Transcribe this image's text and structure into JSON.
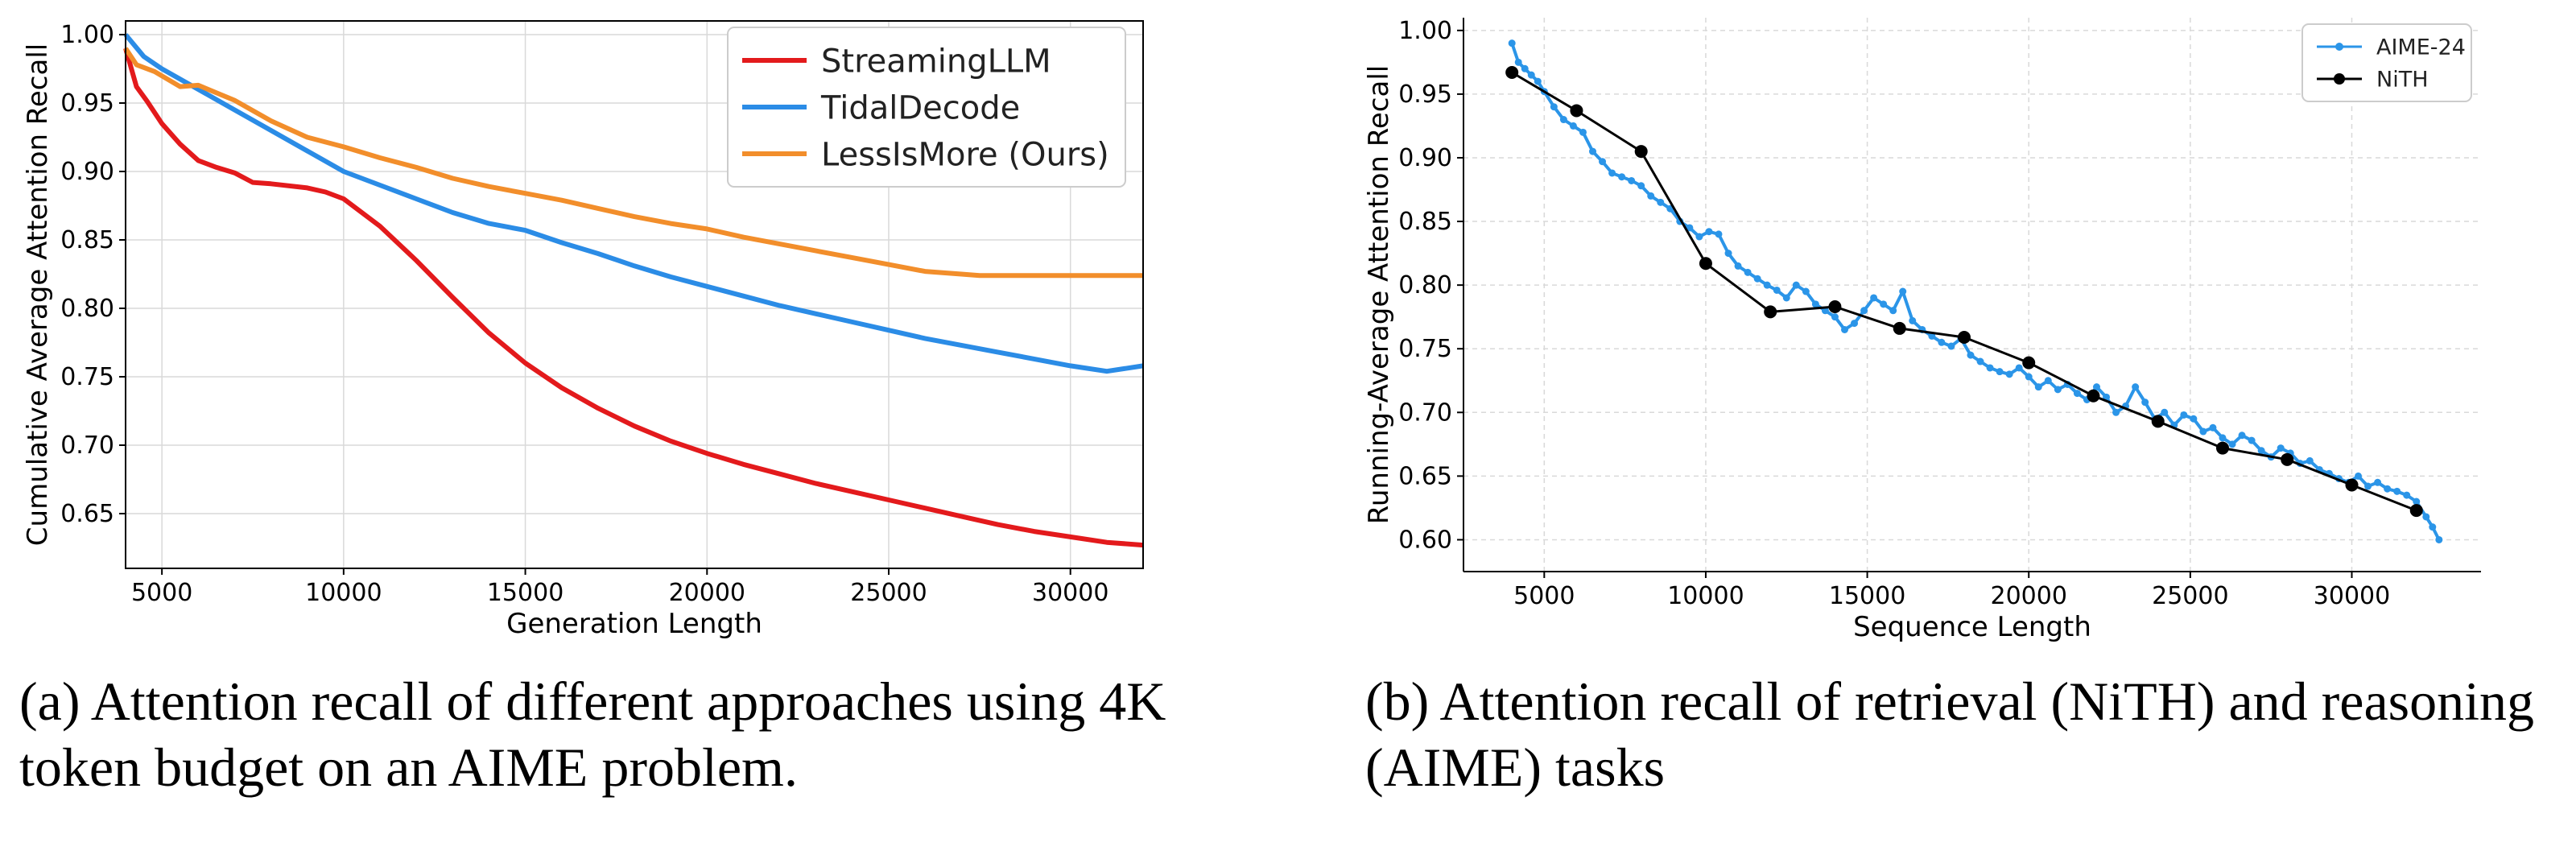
{
  "chart_data": [
    {
      "type": "line",
      "xlabel": "Generation Length",
      "ylabel": "Cumulative Average Attention Recall",
      "xlim": [
        4000,
        32000
      ],
      "ylim": [
        0.61,
        1.01
      ],
      "xticks": [
        5000,
        10000,
        15000,
        20000,
        25000,
        30000
      ],
      "xtick_labels": [
        "5000",
        "10000",
        "15000",
        "20000",
        "25000",
        "30000"
      ],
      "yticks": [
        0.65,
        0.7,
        0.75,
        0.8,
        0.85,
        0.9,
        0.95,
        1.0
      ],
      "ytick_labels": [
        "0.65",
        "0.70",
        "0.75",
        "0.80",
        "0.85",
        "0.90",
        "0.95",
        "1.00"
      ],
      "grid": true,
      "legend_position": "top-right",
      "series": [
        {
          "name": "StreamingLLM",
          "color": "#e31a1c",
          "x": [
            4000,
            4300,
            4600,
            5000,
            5500,
            6000,
            6500,
            7000,
            7500,
            8000,
            9000,
            9500,
            10000,
            11000,
            12000,
            13000,
            14000,
            15000,
            16000,
            17000,
            18000,
            19000,
            20000,
            21000,
            22000,
            23000,
            24000,
            25000,
            26000,
            27000,
            28000,
            29000,
            30000,
            31000,
            32000
          ],
          "y": [
            0.99,
            0.962,
            0.951,
            0.935,
            0.92,
            0.908,
            0.903,
            0.899,
            0.892,
            0.891,
            0.888,
            0.885,
            0.88,
            0.86,
            0.835,
            0.808,
            0.782,
            0.76,
            0.742,
            0.727,
            0.714,
            0.703,
            0.694,
            0.686,
            0.679,
            0.672,
            0.666,
            0.66,
            0.654,
            0.648,
            0.642,
            0.637,
            0.633,
            0.629,
            0.627
          ]
        },
        {
          "name": "TidalDecode",
          "color": "#2b8ce6",
          "x": [
            4000,
            4500,
            5000,
            6000,
            7000,
            8000,
            9000,
            10000,
            11000,
            12000,
            13000,
            14000,
            15000,
            16000,
            17000,
            18000,
            19000,
            20000,
            21000,
            22000,
            23000,
            24000,
            25000,
            26000,
            27000,
            28000,
            29000,
            30000,
            31000,
            32000
          ],
          "y": [
            1.0,
            0.984,
            0.975,
            0.96,
            0.945,
            0.93,
            0.915,
            0.9,
            0.89,
            0.88,
            0.87,
            0.862,
            0.857,
            0.848,
            0.84,
            0.831,
            0.823,
            0.816,
            0.809,
            0.802,
            0.796,
            0.79,
            0.784,
            0.778,
            0.773,
            0.768,
            0.763,
            0.758,
            0.754,
            0.758
          ]
        },
        {
          "name": "LessIsMore (Ours)",
          "color": "#f28e2b",
          "x": [
            4000,
            4300,
            4800,
            5500,
            6000,
            7000,
            8000,
            9000,
            10000,
            11000,
            12000,
            13000,
            14000,
            15000,
            16000,
            17000,
            18000,
            19000,
            20000,
            21000,
            22000,
            23000,
            24000,
            25000,
            26000,
            27000,
            27500,
            28000,
            29000,
            30000,
            31000,
            32000
          ],
          "y": [
            0.99,
            0.978,
            0.973,
            0.962,
            0.963,
            0.952,
            0.937,
            0.925,
            0.918,
            0.91,
            0.903,
            0.895,
            0.889,
            0.884,
            0.879,
            0.873,
            0.867,
            0.862,
            0.858,
            0.852,
            0.847,
            0.842,
            0.837,
            0.832,
            0.827,
            0.825,
            0.824,
            0.824,
            0.824,
            0.824,
            0.824,
            0.824
          ]
        }
      ]
    },
    {
      "type": "line",
      "xlabel": "Sequence Length",
      "ylabel": "Running-Average Attention Recall",
      "xlim": [
        2500,
        34000
      ],
      "ylim": [
        0.575,
        1.01
      ],
      "xticks": [
        5000,
        10000,
        15000,
        20000,
        25000,
        30000
      ],
      "xtick_labels": [
        "5000",
        "10000",
        "15000",
        "20000",
        "25000",
        "30000"
      ],
      "yticks": [
        0.6,
        0.65,
        0.7,
        0.75,
        0.8,
        0.85,
        0.9,
        0.95,
        1.0
      ],
      "ytick_labels": [
        "0.60",
        "0.65",
        "0.70",
        "0.75",
        "0.80",
        "0.85",
        "0.90",
        "0.95",
        "1.00"
      ],
      "grid": true,
      "legend_position": "top-right",
      "series": [
        {
          "name": "AIME-24",
          "color": "#2b95e8",
          "marker": "small-dot",
          "x": [
            4000,
            4200,
            4400,
            4600,
            4800,
            5000,
            5300,
            5600,
            5900,
            6200,
            6500,
            6800,
            7100,
            7400,
            7700,
            8000,
            8300,
            8600,
            8900,
            9200,
            9500,
            9800,
            10100,
            10400,
            10700,
            11000,
            11300,
            11600,
            11900,
            12200,
            12500,
            12800,
            13100,
            13400,
            13700,
            14000,
            14300,
            14600,
            14900,
            15200,
            15500,
            15800,
            16100,
            16400,
            16700,
            17000,
            17300,
            17600,
            17900,
            18200,
            18500,
            18800,
            19100,
            19400,
            19700,
            20000,
            20300,
            20600,
            20900,
            21200,
            21500,
            21800,
            22100,
            22400,
            22700,
            23000,
            23300,
            23600,
            23900,
            24200,
            24500,
            24800,
            25100,
            25400,
            25700,
            26000,
            26300,
            26600,
            26900,
            27200,
            27500,
            27800,
            28100,
            28400,
            28700,
            29000,
            29300,
            29600,
            29900,
            30200,
            30500,
            30800,
            31100,
            31400,
            31700,
            32000,
            32300,
            32500,
            32700
          ],
          "y": [
            0.99,
            0.975,
            0.97,
            0.965,
            0.96,
            0.952,
            0.94,
            0.93,
            0.925,
            0.92,
            0.905,
            0.897,
            0.888,
            0.885,
            0.882,
            0.878,
            0.87,
            0.865,
            0.86,
            0.85,
            0.845,
            0.838,
            0.842,
            0.84,
            0.825,
            0.815,
            0.81,
            0.805,
            0.8,
            0.796,
            0.79,
            0.8,
            0.795,
            0.785,
            0.78,
            0.775,
            0.765,
            0.77,
            0.78,
            0.79,
            0.785,
            0.78,
            0.795,
            0.772,
            0.765,
            0.76,
            0.755,
            0.752,
            0.758,
            0.745,
            0.74,
            0.735,
            0.732,
            0.73,
            0.735,
            0.728,
            0.72,
            0.725,
            0.718,
            0.722,
            0.715,
            0.71,
            0.72,
            0.712,
            0.7,
            0.705,
            0.72,
            0.708,
            0.695,
            0.7,
            0.69,
            0.698,
            0.695,
            0.685,
            0.688,
            0.68,
            0.675,
            0.682,
            0.678,
            0.67,
            0.665,
            0.672,
            0.668,
            0.66,
            0.662,
            0.655,
            0.652,
            0.648,
            0.645,
            0.65,
            0.642,
            0.645,
            0.64,
            0.638,
            0.635,
            0.63,
            0.618,
            0.61,
            0.6
          ]
        },
        {
          "name": "NiTH",
          "color": "#000000",
          "marker": "dot",
          "x": [
            4000,
            6000,
            8000,
            10000,
            12000,
            14000,
            16000,
            18000,
            20000,
            22000,
            24000,
            26000,
            28000,
            30000,
            32000
          ],
          "y": [
            0.967,
            0.937,
            0.905,
            0.817,
            0.779,
            0.783,
            0.766,
            0.759,
            0.739,
            0.713,
            0.693,
            0.672,
            0.663,
            0.643,
            0.623
          ]
        }
      ]
    }
  ],
  "captions": [
    "(a) Attention recall of different approaches using 4K\ntoken budget on an AIME problem.",
    "(b) Attention recall of retrieval (NiTH) and reasoning\n(AIME) tasks"
  ]
}
